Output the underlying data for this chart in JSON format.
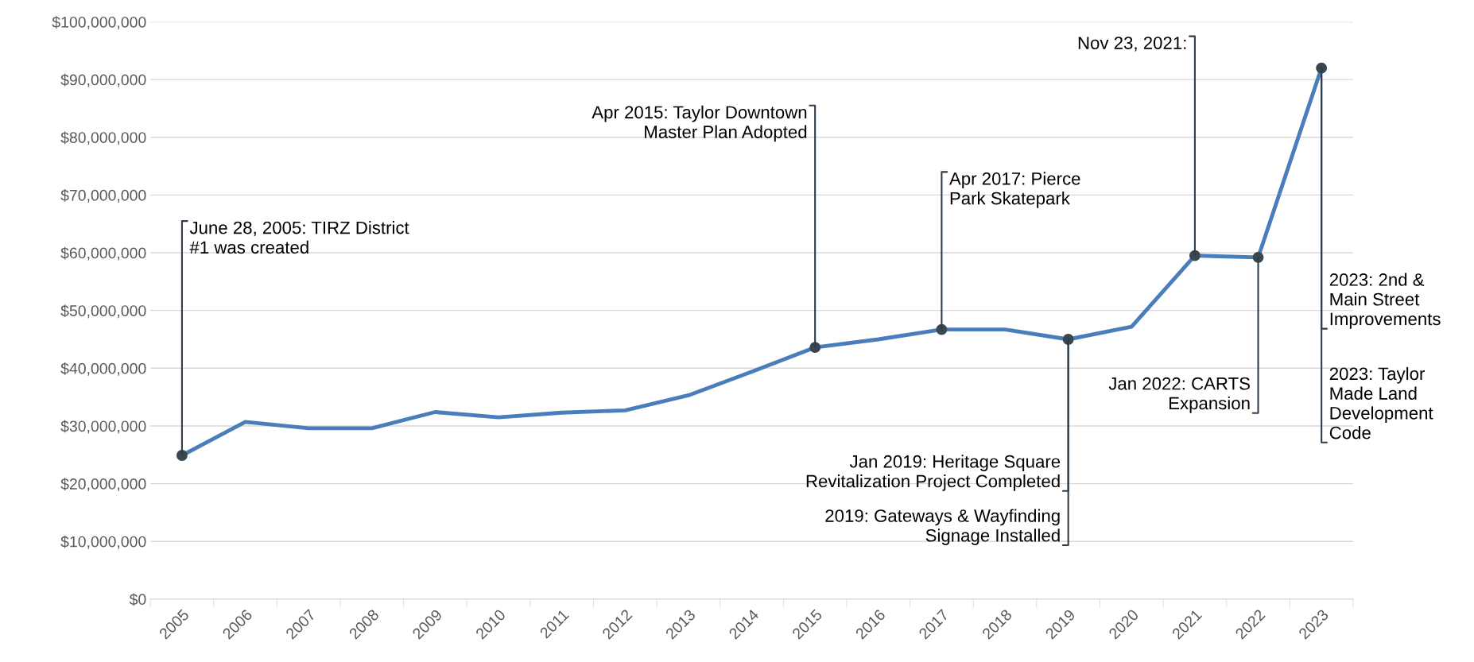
{
  "chart_data": {
    "type": "line",
    "categories": [
      "2005",
      "2006",
      "2007",
      "2008",
      "2009",
      "2010",
      "2011",
      "2012",
      "2013",
      "2014",
      "2015",
      "2016",
      "2017",
      "2018",
      "2019",
      "2020",
      "2021",
      "2022",
      "2023"
    ],
    "series": [
      {
        "color": "#4a7ebb",
        "values": [
          24900000,
          30700000,
          29600000,
          29600000,
          32400000,
          31500000,
          32300000,
          32700000,
          35300000,
          39400000,
          43600000,
          45000000,
          46700000,
          46700000,
          45000000,
          47200000,
          59500000,
          59200000,
          92000000
        ]
      }
    ],
    "ylim": [
      0,
      100000000
    ],
    "yticks": [
      {
        "value": 0,
        "label": "$0"
      },
      {
        "value": 10000000,
        "label": "$10,000,000"
      },
      {
        "value": 20000000,
        "label": "$20,000,000"
      },
      {
        "value": 30000000,
        "label": "$30,000,000"
      },
      {
        "value": 40000000,
        "label": "$40,000,000"
      },
      {
        "value": 50000000,
        "label": "$50,000,000"
      },
      {
        "value": 60000000,
        "label": "$60,000,000"
      },
      {
        "value": 70000000,
        "label": "$70,000,000"
      },
      {
        "value": 80000000,
        "label": "$80,000,000"
      },
      {
        "value": 90000000,
        "label": "$90,000,000"
      },
      {
        "value": 100000000,
        "label": "$100,000,000"
      }
    ],
    "grid": "y",
    "line_style": "solid",
    "annotations": [
      {
        "text": "June 28, 2005: TIRZ District\n#1 was created",
        "x": "2005",
        "y": 24900000
      },
      {
        "text": "Apr 2015: Taylor Downtown\nMaster Plan Adopted",
        "x": "2015",
        "y": 43600000
      },
      {
        "text": "Apr 2017: Pierce\nPark Skatepark",
        "x": "2017",
        "y": 46700000
      },
      {
        "text": "Jan 2019: Heritage Square\nRevitalization Project Completed",
        "x": "2019",
        "y": 45000000
      },
      {
        "text": "2019: Gateways & Wayfinding\nSignage Installed",
        "x": "2019",
        "y": 45000000
      },
      {
        "text": "Nov 23, 2021:",
        "x": "2021",
        "y": 59500000
      },
      {
        "text": "Jan 2022: CARTS\nExpansion",
        "x": "2022",
        "y": 59200000
      },
      {
        "text": "2023: 2nd &\nMain Street\nImprovements",
        "x": "2023",
        "y": 92000000
      },
      {
        "text": "2023: Taylor\nMade Land\nDevelopment\nCode",
        "x": "2023",
        "y": 92000000
      }
    ]
  }
}
